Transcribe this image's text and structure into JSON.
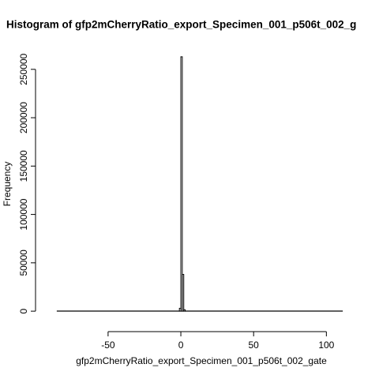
{
  "chart_data": {
    "type": "histogram",
    "title": "Histogram of gfp2mCherryRatio_export_Specimen_001_p506t_002_g",
    "x_label": "gfp2mCherryRatio_export_Specimen_001_p506t_002_gate",
    "y_label": "Frequency",
    "bins": [
      -85,
      -1,
      0,
      1,
      2,
      3,
      111
    ],
    "counts": [
      200,
      3000,
      263000,
      38000,
      1500,
      200
    ],
    "color": "#000000",
    "xlim": [
      -92.8,
      118.8
    ],
    "xticks": [
      -50,
      0,
      50,
      100
    ],
    "ylim": [
      -10520,
      273520
    ],
    "yticks": [
      0,
      50000,
      100000,
      150000,
      200000,
      250000
    ]
  }
}
